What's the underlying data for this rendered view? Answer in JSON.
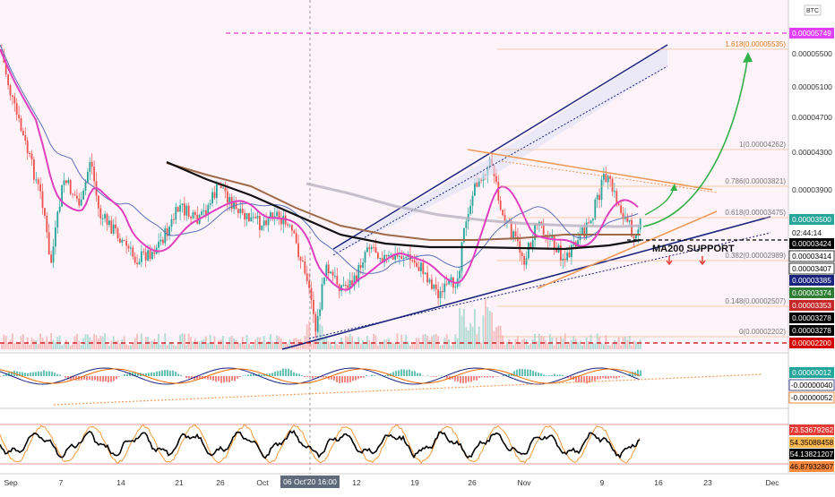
{
  "symbol": "BTC",
  "colors": {
    "background": "#fdf3f9",
    "bull": "#26a69a",
    "bear": "#ef5350",
    "ma200": "#111111",
    "ma_brown": "#a0694a",
    "ma_gray": "#b9b3c1",
    "ma_pink": "#e040c0",
    "ma_blue": "#5a6fb8",
    "channel": "#1a237e",
    "fib": "#ef9a59",
    "arrow": "#33b24a",
    "magenta_line": "#e83ad0"
  },
  "annotation": "MA200 SUPPORT",
  "crosshair_label": "06 Oct'20  16:00",
  "countdown": "02:44:14",
  "fib_levels": [
    {
      "label": "1.618(0.00005535)",
      "value": 5.535e-05
    },
    {
      "label": "1(0.00004262)",
      "value": 4.262e-05
    },
    {
      "label": "0.786(0.00003821)",
      "value": 3.821e-05
    },
    {
      "label": "0.618(0.00003475)",
      "value": 3.475e-05
    },
    {
      "label": "0.382(0.00002989)",
      "value": 2.989e-05
    },
    {
      "label": "0.148(0.00002507)",
      "value": 2.507e-05
    },
    {
      "label": "0(0.00002202)",
      "value": 2.202e-05
    }
  ],
  "price_axis_ticks": [
    "0.00005500",
    "0.00005100",
    "0.00004700",
    "0.00004300",
    "0.00003900"
  ],
  "price_badges": [
    {
      "label": "0.00005749",
      "bg": "#e040fb",
      "fg": "#ffffff"
    },
    {
      "label": "0.00003500",
      "bg": "#26a69a",
      "fg": "#ffffff"
    },
    {
      "label": "0.00003424",
      "bg": "#000000",
      "fg": "#ffffff"
    },
    {
      "label": "0.00003414",
      "bg": "#ffffff",
      "fg": "#000000",
      "border": "#000000"
    },
    {
      "label": "0.00003407",
      "bg": "#ffffff",
      "fg": "#000000",
      "border": "#000000"
    },
    {
      "label": "0.00003385",
      "bg": "#1a237e",
      "fg": "#ffffff"
    },
    {
      "label": "0.00003374",
      "bg": "#2e7d32",
      "fg": "#ffffff"
    },
    {
      "label": "0.00003353",
      "bg": "#c62828",
      "fg": "#ffffff"
    },
    {
      "label": "0.00003278",
      "bg": "#000000",
      "fg": "#ffffff"
    },
    {
      "label": "0.00003278",
      "bg": "#000000",
      "fg": "#ffffff"
    },
    {
      "label": "0.00002200",
      "bg": "#d50000",
      "fg": "#ffffff"
    }
  ],
  "macd_badges": [
    {
      "label": "0.00000012",
      "bg": "#26a69a",
      "fg": "#ffffff"
    },
    {
      "label": "-0.00000040",
      "bg": "#ffffff",
      "fg": "#000000",
      "border": "#1a237e"
    },
    {
      "label": "-0.00000052",
      "bg": "#ffffff",
      "fg": "#000000",
      "border": "#ef6c00"
    }
  ],
  "rsi_badges": [
    {
      "label": "73.53679262",
      "bg": "#e53935",
      "fg": "#ffffff"
    },
    {
      "label": "54.35088458",
      "bg": "#ffb74d",
      "fg": "#000000"
    },
    {
      "label": "54.13821207",
      "bg": "#000000",
      "fg": "#ffffff"
    },
    {
      "label": "46.87932807",
      "bg": "#ff8a3d",
      "fg": "#000000"
    }
  ],
  "time_axis": [
    "Sep",
    "7",
    "14",
    "21",
    "26",
    "Oct",
    "12",
    "19",
    "26",
    "Nov",
    "9",
    "16",
    "23",
    "Dec"
  ],
  "chart_data": {
    "type": "candlestick",
    "pair": "BTC",
    "x": [
      "Sep",
      "Oct",
      "Nov"
    ],
    "y_unit": "BTC",
    "close_approx": [
      5.5e-05,
      4.8e-05,
      4e-05,
      3.3e-05,
      3e-05,
      3.4e-05,
      3.3e-05,
      2.9e-05,
      2.4e-05,
      3.3e-05,
      3.2e-05,
      2.7e-05,
      4e-05,
      3.2e-05,
      3e-05,
      3.8e-05,
      3.3e-05,
      3.5e-05
    ],
    "current_price": 3.5e-05,
    "target_high": 5.749e-05,
    "support_low": 2.2e-05,
    "indicators": [
      "MA200",
      "MACD",
      "RSI"
    ]
  }
}
